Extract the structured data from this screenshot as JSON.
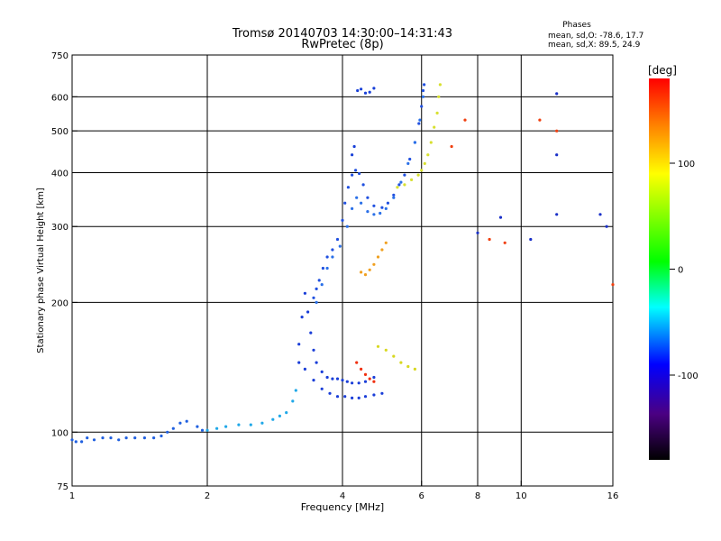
{
  "header": {
    "title_line1": "Tromsø 20140703 14:30:00–14:31:43",
    "title_line2": "RwPretec (8p)",
    "phases_title": "Phases",
    "phases_line1": "mean, sd,O: -78.6, 17.7",
    "phases_line2": "mean, sd,X:  89.5, 24.9"
  },
  "chart_data": {
    "type": "scatter",
    "xlabel": "Frequency [MHz]",
    "ylabel": "Stationary phase Virtual Height [km]",
    "xscale": "log",
    "yscale": "log",
    "xlim": [
      1,
      16
    ],
    "ylim": [
      75,
      750
    ],
    "xticks": [
      1,
      2,
      4,
      6,
      8,
      10,
      16
    ],
    "yticks": [
      75,
      100,
      200,
      300,
      400,
      500,
      600,
      750
    ],
    "xgrid": [
      2,
      4,
      6,
      8,
      10
    ],
    "ygrid": [
      100,
      200,
      300,
      400,
      500,
      600
    ],
    "colorbar": {
      "label": "[deg]",
      "range": [
        -180,
        180
      ],
      "ticks": [
        100,
        0,
        -100
      ],
      "colors": [
        "#000000",
        "#4b0082",
        "#0000ff",
        "#00ffff",
        "#00ff00",
        "#ffff00",
        "#ff7f00",
        "#ff0000"
      ]
    },
    "series": [
      {
        "phase_deg": -120,
        "color": "#2060e0",
        "points": [
          [
            1.0,
            96
          ],
          [
            1.02,
            95
          ],
          [
            1.05,
            95
          ],
          [
            1.08,
            97
          ],
          [
            1.12,
            96
          ],
          [
            1.17,
            97
          ],
          [
            1.22,
            97
          ],
          [
            1.27,
            96
          ],
          [
            1.32,
            97
          ],
          [
            1.38,
            97
          ],
          [
            1.45,
            97
          ],
          [
            1.52,
            97
          ],
          [
            1.58,
            98
          ],
          [
            1.63,
            100
          ],
          [
            1.68,
            102
          ],
          [
            1.74,
            105
          ],
          [
            1.8,
            106
          ],
          [
            1.9,
            103
          ],
          [
            1.95,
            101
          ]
        ]
      },
      {
        "phase_deg": -60,
        "color": "#20a8e8",
        "points": [
          [
            2.0,
            101
          ],
          [
            2.1,
            102
          ],
          [
            2.2,
            103
          ],
          [
            2.35,
            104
          ],
          [
            2.5,
            104
          ],
          [
            2.65,
            105
          ],
          [
            2.8,
            107
          ],
          [
            2.9,
            109
          ],
          [
            3.0,
            111
          ],
          [
            3.1,
            118
          ],
          [
            3.15,
            125
          ]
        ]
      },
      {
        "phase_deg": -125,
        "color": "#1a3ed8",
        "points": [
          [
            3.2,
            160
          ],
          [
            3.25,
            185
          ],
          [
            3.3,
            210
          ],
          [
            3.35,
            190
          ],
          [
            3.4,
            170
          ],
          [
            3.45,
            155
          ],
          [
            3.5,
            145
          ],
          [
            3.6,
            138
          ],
          [
            3.7,
            134
          ],
          [
            3.8,
            133
          ],
          [
            3.9,
            133
          ],
          [
            4.0,
            132
          ],
          [
            4.1,
            131
          ],
          [
            4.2,
            130
          ],
          [
            4.35,
            130
          ],
          [
            4.5,
            131
          ],
          [
            4.7,
            134
          ]
        ]
      },
      {
        "phase_deg": -125,
        "color": "#1a3ed8",
        "points": [
          [
            3.2,
            145
          ],
          [
            3.3,
            140
          ],
          [
            3.45,
            132
          ],
          [
            3.6,
            126
          ],
          [
            3.75,
            123
          ],
          [
            3.9,
            121
          ],
          [
            4.05,
            121
          ],
          [
            4.2,
            120
          ],
          [
            4.35,
            120
          ],
          [
            4.5,
            121
          ],
          [
            4.7,
            122
          ],
          [
            4.9,
            123
          ]
        ]
      },
      {
        "phase_deg": -110,
        "color": "#2050e0",
        "points": [
          [
            3.45,
            205
          ],
          [
            3.5,
            215
          ],
          [
            3.55,
            225
          ],
          [
            3.62,
            240
          ],
          [
            3.7,
            255
          ],
          [
            3.8,
            265
          ],
          [
            3.9,
            280
          ],
          [
            4.0,
            310
          ],
          [
            4.05,
            340
          ],
          [
            4.12,
            370
          ],
          [
            4.2,
            395
          ],
          [
            4.28,
            405
          ],
          [
            4.36,
            398
          ],
          [
            4.45,
            375
          ],
          [
            4.55,
            350
          ],
          [
            4.7,
            335
          ],
          [
            4.9,
            332
          ],
          [
            5.05,
            340
          ],
          [
            5.2,
            355
          ],
          [
            5.35,
            375
          ],
          [
            5.5,
            395
          ],
          [
            5.65,
            430
          ],
          [
            5.8,
            470
          ],
          [
            5.92,
            520
          ],
          [
            6.0,
            570
          ],
          [
            6.05,
            620
          ],
          [
            6.08,
            640
          ]
        ]
      },
      {
        "phase_deg": -100,
        "color": "#2a70e8",
        "points": [
          [
            3.5,
            200
          ],
          [
            3.6,
            220
          ],
          [
            3.7,
            240
          ],
          [
            3.8,
            255
          ],
          [
            3.95,
            270
          ],
          [
            4.1,
            300
          ],
          [
            4.2,
            330
          ],
          [
            4.3,
            350
          ],
          [
            4.4,
            340
          ],
          [
            4.55,
            325
          ],
          [
            4.7,
            320
          ],
          [
            4.85,
            322
          ],
          [
            5.0,
            330
          ],
          [
            5.2,
            350
          ],
          [
            5.4,
            380
          ],
          [
            5.6,
            420
          ],
          [
            5.8,
            470
          ],
          [
            5.95,
            530
          ],
          [
            6.05,
            600
          ]
        ]
      },
      {
        "phase_deg": -115,
        "color": "#1840d8",
        "points": [
          [
            4.2,
            440
          ],
          [
            4.25,
            460
          ],
          [
            4.32,
            620
          ],
          [
            4.4,
            625
          ],
          [
            4.5,
            612
          ],
          [
            4.6,
            615
          ],
          [
            4.7,
            628
          ]
        ]
      },
      {
        "phase_deg": 120,
        "color": "#d8e030",
        "points": [
          [
            5.3,
            370
          ],
          [
            5.5,
            375
          ],
          [
            5.7,
            385
          ],
          [
            5.9,
            395
          ],
          [
            6.0,
            405
          ],
          [
            6.1,
            420
          ],
          [
            6.2,
            440
          ],
          [
            6.3,
            470
          ],
          [
            6.4,
            510
          ],
          [
            6.5,
            550
          ],
          [
            6.55,
            600
          ],
          [
            6.6,
            640
          ]
        ]
      },
      {
        "phase_deg": 150,
        "color": "#f0a020",
        "points": [
          [
            4.4,
            235
          ],
          [
            4.5,
            232
          ],
          [
            4.6,
            238
          ],
          [
            4.7,
            245
          ],
          [
            4.8,
            255
          ],
          [
            4.9,
            265
          ],
          [
            5.0,
            275
          ]
        ]
      },
      {
        "phase_deg": 170,
        "color": "#f03010",
        "points": [
          [
            4.3,
            145
          ],
          [
            4.4,
            140
          ],
          [
            4.5,
            136
          ],
          [
            4.6,
            133
          ],
          [
            4.7,
            131
          ]
        ]
      },
      {
        "phase_deg": 110,
        "color": "#d8d820",
        "points": [
          [
            4.8,
            158
          ],
          [
            5.0,
            155
          ],
          [
            5.2,
            150
          ],
          [
            5.4,
            145
          ],
          [
            5.6,
            142
          ],
          [
            5.8,
            140
          ]
        ]
      },
      {
        "phase_deg": -120,
        "color": "#1a30c8",
        "points": [
          [
            8.0,
            290
          ],
          [
            9.0,
            315
          ],
          [
            10.5,
            280
          ],
          [
            12.0,
            320
          ],
          [
            12.0,
            440
          ],
          [
            12.0,
            610
          ],
          [
            15.0,
            320
          ],
          [
            15.5,
            300
          ]
        ]
      },
      {
        "phase_deg": 160,
        "color": "#f04010",
        "points": [
          [
            7.0,
            460
          ],
          [
            7.5,
            530
          ],
          [
            8.5,
            280
          ],
          [
            9.2,
            275
          ],
          [
            11.0,
            530
          ],
          [
            12.0,
            500
          ],
          [
            16.0,
            220
          ]
        ]
      }
    ]
  }
}
